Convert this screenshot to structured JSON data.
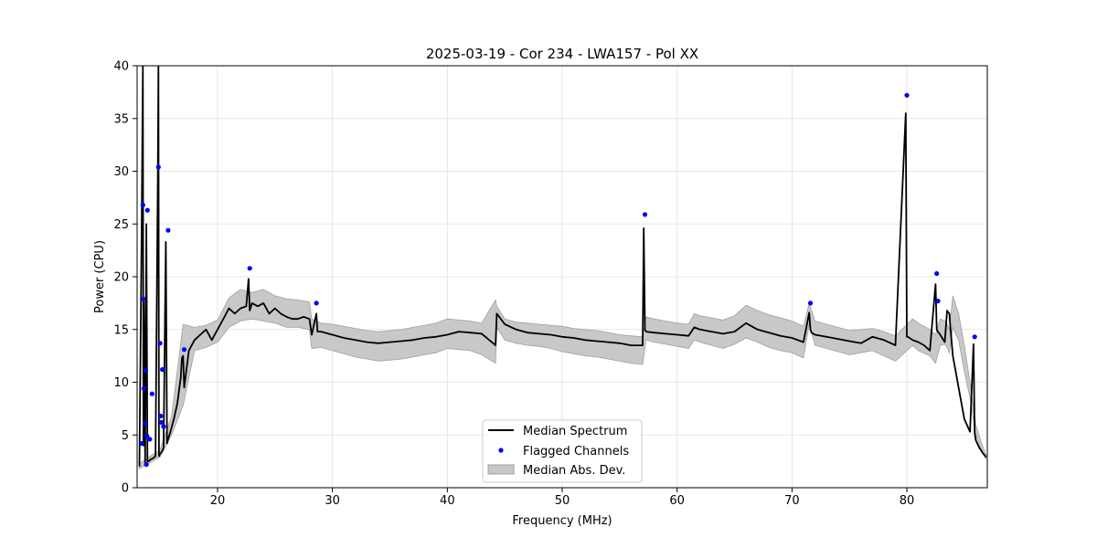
{
  "chart_data": {
    "type": "line",
    "title": "2025-03-19 - Cor 234 - LWA157 - Pol XX",
    "xlabel": "Frequency (MHz)",
    "ylabel": "Power (CPU)",
    "xlim": [
      13.0,
      87.0
    ],
    "ylim": [
      0,
      40
    ],
    "x_ticks": [
      20,
      30,
      40,
      50,
      60,
      70,
      80
    ],
    "x_tick_labels": [
      "20",
      "30",
      "40",
      "50",
      "60",
      "70",
      "80"
    ],
    "y_ticks": [
      0,
      5,
      10,
      15,
      20,
      25,
      30,
      35,
      40
    ],
    "y_tick_labels": [
      "0",
      "5",
      "10",
      "15",
      "20",
      "25",
      "30",
      "35",
      "40"
    ],
    "grid": true,
    "legend_position": "bottom-center",
    "legend": [
      "Median Spectrum",
      "Flagged Channels",
      "Median Abs. Dev."
    ],
    "colors": {
      "median": "#000000",
      "flagged": "#0000ff",
      "mad_fill": "#c8c8c8",
      "mad_edge": "#a0a0a0",
      "grid": "#e0e0e0"
    },
    "series": [
      {
        "name": "Median Spectrum",
        "kind": "line",
        "x": [
          13.2,
          13.4,
          13.5,
          13.55,
          13.6,
          13.7,
          13.8,
          13.9,
          14.0,
          14.1,
          14.2,
          14.4,
          14.6,
          14.8,
          14.85,
          14.9,
          15.0,
          15.2,
          15.3,
          15.5,
          15.6,
          15.7,
          15.9,
          16.2,
          16.5,
          16.8,
          16.9,
          17.0,
          17.1,
          17.5,
          18.0,
          18.5,
          19.0,
          19.5,
          20.0,
          20.5,
          21.0,
          21.5,
          22.0,
          22.5,
          22.7,
          22.8,
          23.0,
          23.5,
          24.0,
          24.5,
          25.0,
          25.5,
          26.0,
          26.5,
          27.0,
          27.5,
          28.0,
          28.2,
          28.6,
          28.7,
          29.0,
          30.0,
          31.0,
          32.0,
          33.0,
          34.0,
          35.0,
          36.0,
          37.0,
          38.0,
          39.0,
          40.0,
          41.0,
          42.0,
          43.0,
          44.2,
          44.3,
          45.0,
          46.0,
          47.0,
          48.0,
          49.0,
          50.0,
          51.0,
          52.0,
          53.0,
          54.0,
          55.0,
          56.0,
          57.0,
          57.1,
          57.2,
          57.3,
          58.0,
          59.0,
          60.0,
          61.0,
          61.5,
          62.0,
          63.0,
          64.0,
          65.0,
          66.0,
          67.0,
          68.0,
          69.0,
          70.0,
          71.0,
          71.5,
          71.6,
          71.7,
          72.0,
          73.0,
          74.0,
          75.0,
          76.0,
          77.0,
          78.0,
          79.0,
          79.9,
          80.0,
          80.1,
          80.5,
          81.0,
          81.5,
          82.0,
          82.5,
          82.6,
          82.7,
          82.9,
          83.3,
          83.5,
          83.7,
          83.8,
          84.0,
          84.5,
          85.0,
          85.5,
          85.8,
          85.9,
          86.0,
          86.3,
          86.6,
          86.9
        ],
        "y": [
          2.0,
          25.0,
          40.0,
          4.0,
          18.0,
          2.3,
          25.0,
          2.5,
          2.5,
          2.6,
          2.7,
          2.8,
          3.0,
          29.0,
          40.0,
          3.0,
          3.2,
          3.5,
          3.8,
          23.3,
          4.2,
          4.6,
          5.3,
          6.5,
          8.0,
          10.5,
          12.3,
          12.5,
          9.5,
          13.0,
          14.0,
          14.5,
          15.0,
          14.0,
          15.0,
          16.0,
          17.0,
          16.5,
          17.0,
          17.2,
          19.8,
          16.8,
          17.5,
          17.2,
          17.5,
          16.5,
          17.0,
          16.5,
          16.2,
          16.0,
          16.0,
          16.2,
          16.0,
          14.5,
          16.5,
          14.8,
          14.8,
          14.5,
          14.2,
          14.0,
          13.8,
          13.7,
          13.8,
          13.9,
          14.0,
          14.2,
          14.3,
          14.5,
          14.8,
          14.7,
          14.6,
          13.5,
          16.5,
          15.5,
          15.0,
          14.7,
          14.6,
          14.5,
          14.3,
          14.2,
          14.0,
          13.9,
          13.8,
          13.7,
          13.5,
          13.5,
          24.6,
          15.0,
          14.8,
          14.7,
          14.6,
          14.5,
          14.4,
          15.2,
          15.0,
          14.8,
          14.6,
          14.8,
          15.6,
          15.0,
          14.7,
          14.4,
          14.2,
          13.8,
          16.6,
          15.0,
          14.7,
          14.5,
          14.3,
          14.1,
          13.9,
          13.7,
          14.3,
          14.0,
          13.5,
          35.5,
          14.3,
          14.3,
          14.0,
          13.8,
          13.5,
          13.0,
          19.3,
          15.0,
          14.8,
          14.5,
          13.8,
          16.8,
          16.5,
          15.0,
          12.5,
          9.5,
          6.5,
          5.3,
          13.6,
          5.2,
          4.5,
          3.8,
          3.3,
          2.9
        ]
      },
      {
        "name": "Flagged Channels",
        "kind": "scatter",
        "x": [
          13.4,
          13.5,
          13.55,
          13.6,
          13.7,
          13.75,
          13.8,
          13.85,
          13.9,
          14.1,
          14.3,
          14.85,
          15.0,
          15.05,
          15.1,
          15.2,
          15.3,
          15.7,
          17.1,
          22.8,
          28.6,
          57.2,
          71.6,
          80.0,
          82.6,
          82.7,
          85.9
        ],
        "y": [
          4.2,
          26.8,
          17.9,
          9.4,
          6.1,
          11.1,
          2.2,
          4.9,
          26.3,
          4.6,
          8.9,
          30.4,
          13.7,
          6.8,
          6.2,
          11.2,
          5.8,
          24.4,
          13.1,
          20.8,
          17.5,
          25.9,
          17.5,
          37.2,
          20.3,
          17.7,
          14.3
        ]
      },
      {
        "name": "Median Abs. Dev.",
        "kind": "band",
        "x": [
          13.2,
          14.0,
          15.0,
          16.0,
          17.0,
          18.0,
          19.0,
          20.0,
          21.0,
          22.0,
          23.0,
          24.0,
          25.0,
          26.0,
          27.0,
          28.0,
          28.2,
          29.0,
          30.0,
          31.0,
          32.0,
          33.0,
          34.0,
          35.0,
          36.0,
          37.0,
          38.0,
          39.0,
          40.0,
          41.0,
          42.0,
          43.0,
          44.2,
          44.3,
          45.0,
          46.0,
          47.0,
          48.0,
          49.0,
          50.0,
          51.0,
          52.0,
          53.0,
          54.0,
          55.0,
          56.0,
          57.0,
          57.3,
          58.0,
          59.0,
          60.0,
          61.0,
          61.5,
          62.0,
          63.0,
          64.0,
          65.0,
          66.0,
          67.0,
          68.0,
          69.0,
          70.0,
          71.0,
          71.5,
          72.0,
          73.0,
          74.0,
          75.0,
          76.0,
          77.0,
          78.0,
          79.0,
          80.5,
          81.0,
          82.0,
          82.5,
          82.9,
          83.3,
          83.5,
          83.7,
          84.0,
          84.5,
          85.0,
          85.5,
          86.0,
          86.5,
          86.9
        ],
        "y_low": [
          1.8,
          2.3,
          2.9,
          5.0,
          7.8,
          13.0,
          13.3,
          13.8,
          15.2,
          15.8,
          16.0,
          15.8,
          15.6,
          15.2,
          15.2,
          15.0,
          13.2,
          13.3,
          13.0,
          12.7,
          12.4,
          12.2,
          12.0,
          12.1,
          12.2,
          12.4,
          12.6,
          12.8,
          13.2,
          13.1,
          13.0,
          12.6,
          11.8,
          15.2,
          14.0,
          13.7,
          13.5,
          13.4,
          13.2,
          12.9,
          12.7,
          12.5,
          12.4,
          12.2,
          12.0,
          11.8,
          11.7,
          14.0,
          13.8,
          13.6,
          13.4,
          13.2,
          14.0,
          13.8,
          13.5,
          13.2,
          13.6,
          14.2,
          13.8,
          13.3,
          13.0,
          12.8,
          12.3,
          15.5,
          13.5,
          13.2,
          12.9,
          12.6,
          12.8,
          13.0,
          12.5,
          12.0,
          13.5,
          13.0,
          12.5,
          11.8,
          13.5,
          13.6,
          13.3,
          12.8,
          15.2,
          14.0,
          11.0,
          8.5,
          5.0,
          3.5,
          2.7
        ],
        "y_high": [
          2.3,
          2.9,
          3.6,
          6.8,
          15.5,
          15.2,
          15.4,
          15.9,
          18.0,
          18.8,
          18.5,
          18.8,
          18.2,
          17.9,
          17.8,
          17.6,
          16.0,
          15.6,
          15.5,
          15.3,
          15.1,
          14.9,
          14.8,
          14.9,
          15.0,
          15.2,
          15.4,
          15.6,
          16.0,
          15.9,
          15.8,
          15.6,
          17.8,
          17.2,
          16.0,
          15.7,
          15.6,
          15.5,
          15.4,
          15.3,
          15.1,
          15.0,
          14.9,
          14.7,
          14.5,
          14.4,
          14.3,
          16.2,
          16.0,
          15.8,
          15.6,
          15.5,
          16.5,
          16.3,
          16.1,
          15.9,
          16.3,
          17.3,
          16.8,
          16.4,
          16.1,
          15.8,
          15.3,
          17.5,
          15.8,
          15.5,
          15.2,
          14.9,
          15.0,
          15.1,
          14.8,
          14.4,
          16.0,
          15.6,
          15.0,
          14.5,
          16.0,
          15.8,
          15.5,
          15.0,
          18.2,
          16.5,
          13.5,
          10.0,
          6.0,
          4.2,
          3.1
        ]
      }
    ]
  }
}
